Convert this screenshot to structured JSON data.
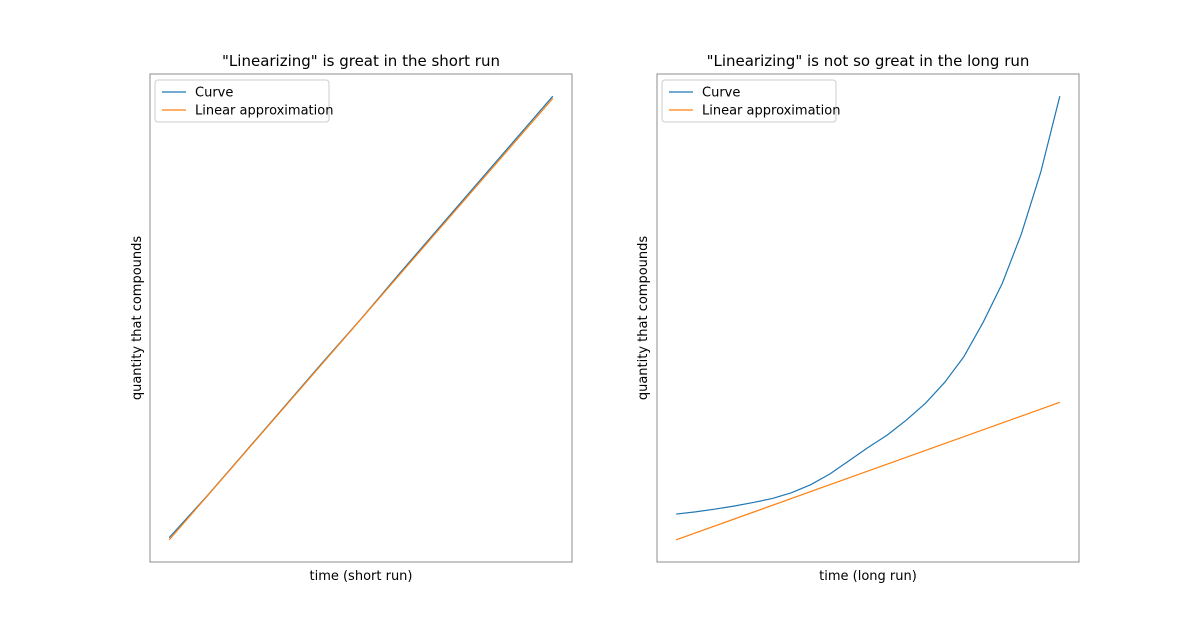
{
  "chart_data": [
    {
      "type": "line",
      "title": "\"Linearizing\" is great in the short run",
      "xlabel": "time (short run)",
      "ylabel": "quantity that compounds",
      "x_ticks_visible": false,
      "y_ticks_visible": false,
      "xlim": [
        -0.05,
        1.05
      ],
      "ylim": [
        -0.05,
        1.05
      ],
      "legend": "upper-left",
      "grid": false,
      "series": [
        {
          "name": "Curve",
          "color": "#1f77b4",
          "x": [
            0,
            0.1,
            0.2,
            0.3,
            0.4,
            0.5,
            0.6,
            0.7,
            0.8,
            0.9,
            1.0
          ],
          "y": [
            0.005,
            0.1,
            0.2,
            0.3,
            0.4,
            0.498,
            0.6,
            0.7,
            0.8,
            0.9,
            1.0
          ]
        },
        {
          "name": "Linear approximation",
          "color": "#ff7f0e",
          "x": [
            0,
            1.0
          ],
          "y": [
            0.0,
            0.995
          ]
        }
      ]
    },
    {
      "type": "line",
      "title": "\"Linearizing\" is not so great in the long run",
      "xlabel": "time (long run)",
      "ylabel": "quantity that compounds",
      "x_ticks_visible": false,
      "y_ticks_visible": false,
      "xlim": [
        -0.05,
        1.05
      ],
      "ylim": [
        -0.05,
        1.05
      ],
      "legend": "upper-left",
      "grid": false,
      "series": [
        {
          "name": "Curve",
          "color": "#1f77b4",
          "x": [
            0,
            0.05,
            0.1,
            0.15,
            0.2,
            0.25,
            0.3,
            0.35,
            0.4,
            0.45,
            0.5,
            0.55,
            0.6,
            0.65,
            0.7,
            0.75,
            0.8,
            0.85,
            0.9,
            0.95,
            1.0
          ],
          "y": [
            0.058,
            0.063,
            0.069,
            0.076,
            0.084,
            0.093,
            0.106,
            0.124,
            0.148,
            0.178,
            0.208,
            0.236,
            0.27,
            0.308,
            0.355,
            0.413,
            0.49,
            0.578,
            0.69,
            0.828,
            1.0
          ]
        },
        {
          "name": "Linear approximation",
          "color": "#ff7f0e",
          "x": [
            0,
            1.0
          ],
          "y": [
            0.0,
            0.31
          ]
        }
      ]
    }
  ]
}
